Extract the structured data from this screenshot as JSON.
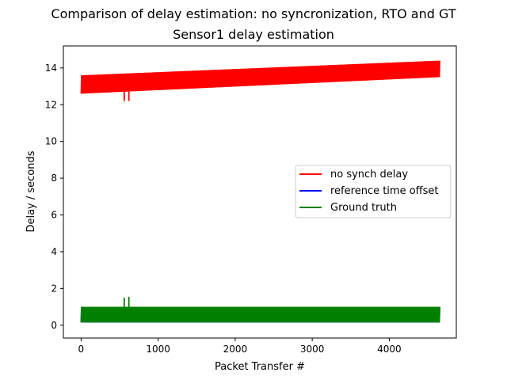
{
  "figure": {
    "suptitle": "Comparison of delay estimation: no syncronization, RTO and GT"
  },
  "chart_data": {
    "type": "line",
    "title": "Sensor1 delay estimation",
    "xlabel": "Packet Transfer #",
    "ylabel": "Delay / seconds",
    "xlim": [
      -230,
      4870
    ],
    "ylim": [
      -0.7,
      15.2
    ],
    "xticks": [
      "0",
      "1000",
      "2000",
      "3000",
      "4000"
    ],
    "yticks": [
      "0",
      "2",
      "4",
      "6",
      "8",
      "10",
      "12",
      "14"
    ],
    "grid": false,
    "legend_position": "center-right",
    "series": [
      {
        "name": "no synch delay",
        "color": "#ff0000",
        "x_range": [
          0,
          4650
        ],
        "band_lower": [
          12.6,
          13.5
        ],
        "band_upper": [
          13.6,
          14.4
        ],
        "spikes": [
          {
            "x": 560,
            "y": 12.2
          },
          {
            "x": 620,
            "y": 12.2
          }
        ]
      },
      {
        "name": "reference time offset",
        "color": "#0000ff",
        "x_range": [
          0,
          4650
        ],
        "band_lower": [
          0.15,
          0.15
        ],
        "band_upper": [
          1.0,
          1.0
        ],
        "spikes": []
      },
      {
        "name": "Ground truth",
        "color": "#008000",
        "x_range": [
          0,
          4650
        ],
        "band_lower": [
          0.15,
          0.15
        ],
        "band_upper": [
          1.0,
          1.0
        ],
        "spikes": [
          {
            "x": 560,
            "y": 1.5
          },
          {
            "x": 620,
            "y": 1.55
          }
        ]
      }
    ]
  }
}
